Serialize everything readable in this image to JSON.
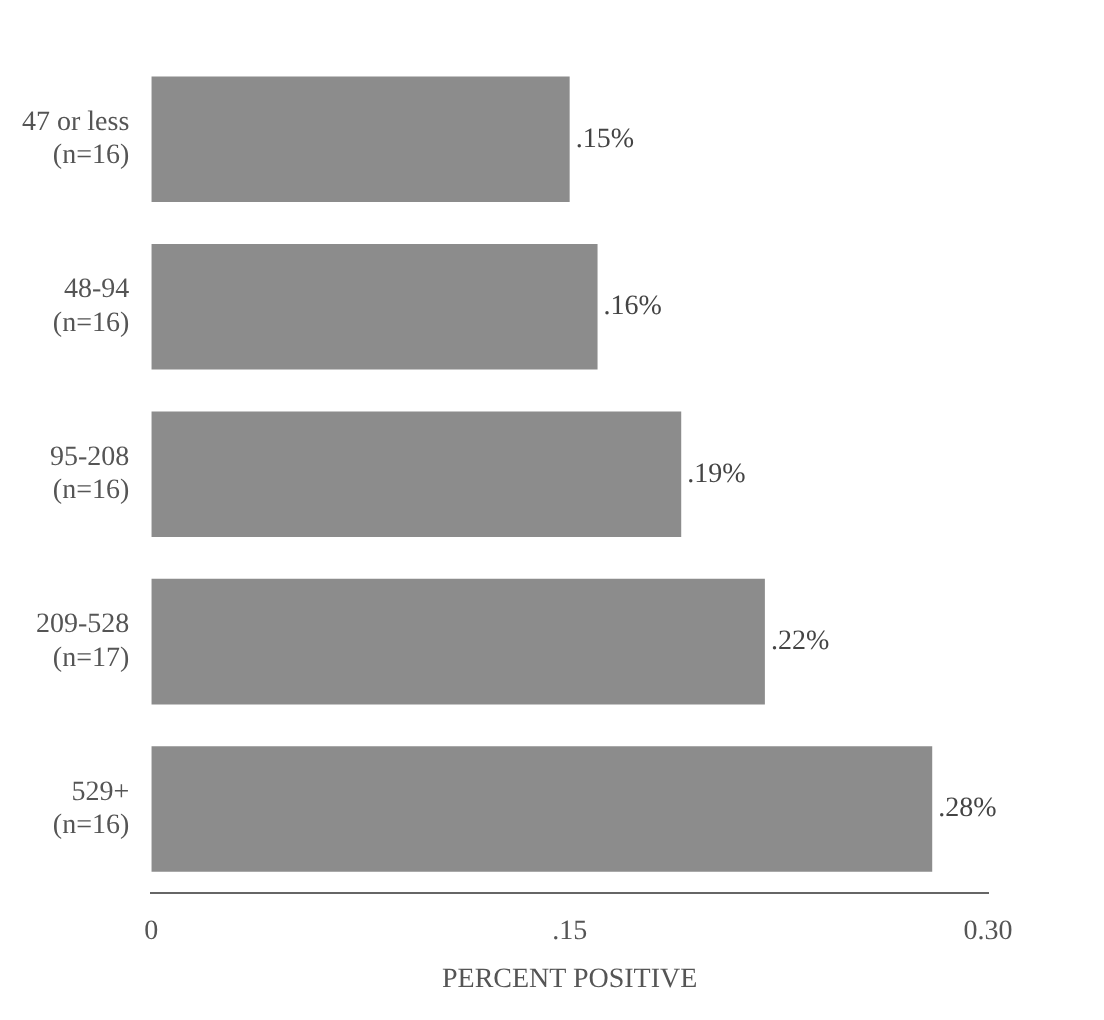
{
  "chart_data": {
    "type": "bar",
    "orientation": "horizontal",
    "xlabel": "PERCENT POSITIVE",
    "categories": [
      "47 or less\n(n=16)",
      "48-94\n(n=16)",
      "95-208\n(n=16)",
      "209-528\n(n=17)",
      "529+\n(n=16)"
    ],
    "values": [
      0.15,
      0.16,
      0.19,
      0.22,
      0.28
    ],
    "value_labels": [
      ".15%",
      ".16%",
      ".19%",
      ".22%",
      ".28%"
    ],
    "color": "#8c8c8c",
    "xlim": [
      0,
      0.3
    ],
    "xticks": [
      0,
      {
        "value": 0.15,
        "label": ".15"
      },
      {
        "value": 0.3,
        "label": "0.30"
      }
    ],
    "grid": false,
    "legend": false
  }
}
